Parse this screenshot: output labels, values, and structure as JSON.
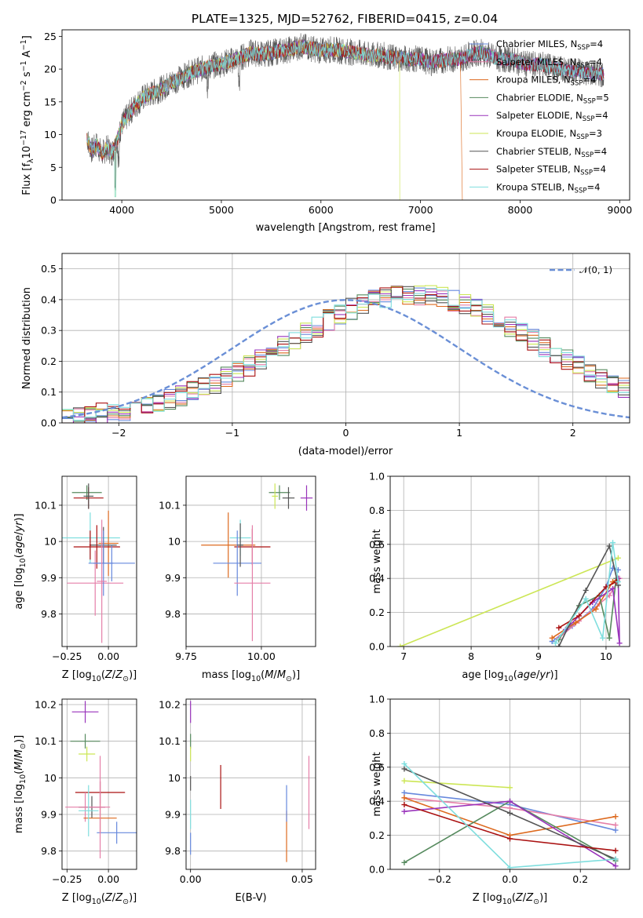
{
  "title": "PLATE=1325, MJD=52762, FIBERID=0415, z=0.04",
  "chart_data": [
    {
      "type": "line",
      "panel": "spectrum",
      "xlabel": "wavelength [Angstrom, rest frame]",
      "ylabel": "Flux [f",
      "ylabel_parts": [
        "Flux [f",
        "λ",
        "10",
        "−17",
        " erg cm",
        "−2",
        " s",
        "−1",
        " A",
        "−1",
        "]"
      ],
      "xlim": [
        3400,
        9100
      ],
      "ylim": [
        0,
        26
      ],
      "xticks": [
        4000,
        5000,
        6000,
        7000,
        8000,
        9000
      ],
      "yticks": [
        0,
        5,
        10,
        15,
        20,
        25
      ],
      "grid": false,
      "legend": "top-right",
      "x": [
        3650,
        3700,
        3750,
        3800,
        3850,
        3900,
        3950,
        4000,
        4100,
        4200,
        4300,
        4400,
        4500,
        4600,
        4700,
        4800,
        4900,
        5000,
        5100,
        5200,
        5300,
        5400,
        5500,
        5600,
        5700,
        5800,
        5900,
        6000,
        6100,
        6200,
        6300,
        6400,
        6500,
        6600,
        6700,
        6800,
        6900,
        7000,
        7100,
        7200,
        7300,
        7400,
        7500,
        7600,
        7700,
        7800,
        7900,
        8000,
        8100,
        8200,
        8300,
        8400,
        8500,
        8600,
        8700,
        8800
      ],
      "flux": [
        9.5,
        7.5,
        8.5,
        7.0,
        8.0,
        7.2,
        9.0,
        11.5,
        13.8,
        15.5,
        16.3,
        17.0,
        18.0,
        18.7,
        19.5,
        20.0,
        20.5,
        20.8,
        21.3,
        21.8,
        22.5,
        22.3,
        22.5,
        22.8,
        23.0,
        23.5,
        23.2,
        22.8,
        23.0,
        22.8,
        22.6,
        22.4,
        22.0,
        22.2,
        21.8,
        21.7,
        21.5,
        21.6,
        21.0,
        21.3,
        21.5,
        21.6,
        22.2,
        22.6,
        22.0,
        21.5,
        21.5,
        21.0,
        20.6,
        20.8,
        20.3,
        20.0,
        19.6,
        19.8,
        19.4,
        19.3
      ],
      "series": [
        {
          "name": "Chabrier MILES, N",
          "sub": "SSP",
          "suffix": "=4",
          "color": "#6688dd"
        },
        {
          "name": "Salpeter MILES, N",
          "sub": "SSP",
          "suffix": "=4",
          "color": "#e57fa8"
        },
        {
          "name": "Kroupa MILES, N",
          "sub": "SSP",
          "suffix": "=4",
          "color": "#dd6a1f"
        },
        {
          "name": "Chabrier ELODIE, N",
          "sub": "SSP",
          "suffix": "=5",
          "color": "#568a5e"
        },
        {
          "name": "Salpeter ELODIE, N",
          "sub": "SSP",
          "suffix": "=4",
          "color": "#9933bb"
        },
        {
          "name": "Kroupa ELODIE, N",
          "sub": "SSP",
          "suffix": "=3",
          "color": "#cce655"
        },
        {
          "name": "Chabrier STELIB, N",
          "sub": "SSP",
          "suffix": "=4",
          "color": "#555555"
        },
        {
          "name": "Salpeter STELIB, N",
          "sub": "SSP",
          "suffix": "=4",
          "color": "#aa1111"
        },
        {
          "name": "Kroupa STELIB, N",
          "sub": "SSP",
          "suffix": "=4",
          "color": "#7fdede"
        }
      ]
    },
    {
      "type": "line",
      "panel": "residual histogram",
      "xlabel": "(data-model)/error",
      "ylabel": "Normed distribution",
      "xlim": [
        -2.5,
        2.5
      ],
      "ylim": [
        0,
        0.55
      ],
      "xticks": [
        -2,
        -1,
        0,
        1,
        2
      ],
      "yticks": [
        0.0,
        0.1,
        0.2,
        0.3,
        0.4,
        0.5
      ],
      "grid": true,
      "legend": "top-right",
      "bin_width": 0.1,
      "bin_start": -2.5,
      "histogram_base": [
        0.018,
        0.022,
        0.026,
        0.03,
        0.035,
        0.041,
        0.048,
        0.056,
        0.065,
        0.075,
        0.087,
        0.1,
        0.114,
        0.13,
        0.147,
        0.165,
        0.184,
        0.205,
        0.226,
        0.248,
        0.27,
        0.292,
        0.313,
        0.334,
        0.353,
        0.37,
        0.385,
        0.397,
        0.406,
        0.412,
        0.415,
        0.415,
        0.412,
        0.406,
        0.397,
        0.385,
        0.37,
        0.353,
        0.334,
        0.313,
        0.292,
        0.27,
        0.248,
        0.226,
        0.205,
        0.184,
        0.165,
        0.147,
        0.13,
        0.114
      ],
      "reference": {
        "label": "𝒩(0, 1)",
        "color": "#6a8fd6"
      },
      "series_colors": [
        "#6688dd",
        "#e57fa8",
        "#dd6a1f",
        "#568a5e",
        "#9933bb",
        "#cce655",
        "#555555",
        "#aa1111",
        "#7fdede"
      ]
    },
    {
      "type": "scatter",
      "panel": "age vs metallicity",
      "xlabel": "Z [log10(Z/Z⊙)]",
      "ylabel": "age [log10(age/yr)]",
      "xlim": [
        -0.28,
        0.17
      ],
      "ylim": [
        9.71,
        10.18
      ],
      "xticks": [
        -0.25,
        0.0
      ],
      "xticklabels": [
        "−0.25",
        "0.00"
      ],
      "yticks": [
        9.8,
        9.9,
        10.0,
        10.1
      ],
      "grid": true,
      "points": [
        {
          "x": -0.13,
          "y": 10.135,
          "xerr": 0.09,
          "yerr": 0.02,
          "color": "#568a5e"
        },
        {
          "x": -0.12,
          "y": 10.12,
          "xerr": 0.09,
          "yerr": 0.03,
          "color": "#aa1111"
        },
        {
          "x": -0.12,
          "y": 10.125,
          "xerr": 0.03,
          "yerr": 0.035,
          "color": "#555555"
        },
        {
          "x": -0.11,
          "y": 10.01,
          "xerr": 0.18,
          "yerr": 0.07,
          "color": "#7fdede"
        },
        {
          "x": 0.0,
          "y": 9.995,
          "xerr": 0.06,
          "yerr": 0.09,
          "color": "#dd6a1f"
        },
        {
          "x": -0.03,
          "y": 9.99,
          "xerr": 0.08,
          "yerr": 0.05,
          "color": "#555555"
        },
        {
          "x": -0.07,
          "y": 9.985,
          "xerr": 0.14,
          "yerr": 0.06,
          "color": "#aa1111"
        },
        {
          "x": 0.02,
          "y": 9.94,
          "xerr": 0.14,
          "yerr": 0.05,
          "color": "#6688dd"
        },
        {
          "x": -0.08,
          "y": 9.885,
          "xerr": 0.17,
          "yerr": 0.09,
          "color": "#e57fa8"
        },
        {
          "x": -0.03,
          "y": 9.94,
          "xerr": 0.06,
          "yerr": 0.09,
          "color": "#6688dd"
        },
        {
          "x": -0.04,
          "y": 9.89,
          "xerr": 0.03,
          "yerr": 0.17,
          "color": "#e57fa8"
        },
        {
          "x": -0.11,
          "y": 9.99,
          "xerr": 0.005,
          "yerr": 0.04,
          "color": "#aa1111"
        }
      ]
    },
    {
      "type": "scatter",
      "panel": "age vs mass",
      "xlabel": "mass [log10(M/M⊙)]",
      "xlim": [
        9.75,
        10.18
      ],
      "ylim": [
        9.71,
        10.18
      ],
      "xticks": [
        9.75,
        10.0
      ],
      "xticklabels": [
        "9.75",
        "10.00"
      ],
      "yticks": [
        9.8,
        9.9,
        10.0,
        10.1
      ],
      "grid": true,
      "points": [
        {
          "x": 10.06,
          "y": 10.135,
          "xerr": 0.035,
          "yerr": 0.02,
          "color": "#568a5e"
        },
        {
          "x": 10.045,
          "y": 10.125,
          "xerr": 0.01,
          "yerr": 0.035,
          "color": "#cce655"
        },
        {
          "x": 10.09,
          "y": 10.12,
          "xerr": 0.02,
          "yerr": 0.03,
          "color": "#555555"
        },
        {
          "x": 10.15,
          "y": 10.12,
          "xerr": 0.02,
          "yerr": 0.035,
          "color": "#9933bb"
        },
        {
          "x": 9.93,
          "y": 10.01,
          "xerr": 0.035,
          "yerr": 0.05,
          "color": "#7fdede"
        },
        {
          "x": 9.89,
          "y": 9.99,
          "xerr": 0.09,
          "yerr": 0.09,
          "color": "#dd6a1f"
        },
        {
          "x": 9.97,
          "y": 9.985,
          "xerr": 0.06,
          "yerr": 0.05,
          "color": "#aa1111"
        },
        {
          "x": 9.92,
          "y": 9.94,
          "xerr": 0.08,
          "yerr": 0.09,
          "color": "#6688dd"
        },
        {
          "x": 9.97,
          "y": 9.885,
          "xerr": 0.06,
          "yerr": 0.16,
          "color": "#e57fa8"
        },
        {
          "x": 9.93,
          "y": 9.99,
          "xerr": 0.01,
          "yerr": 0.06,
          "color": "#555555"
        }
      ]
    },
    {
      "type": "line",
      "panel": "mass weight vs age",
      "xlabel": "age [log10(age/yr)]",
      "ylabel": "mass weight",
      "xlim": [
        6.8,
        10.35
      ],
      "ylim": [
        0,
        1.0
      ],
      "xticks": [
        7,
        8,
        9,
        10
      ],
      "yticks": [
        0.0,
        0.2,
        0.4,
        0.6,
        0.8,
        1.0
      ],
      "grid": true,
      "series": [
        {
          "color": "#6688dd",
          "x": [
            9.2,
            9.5,
            9.8,
            10.0,
            10.1,
            10.18
          ],
          "y": [
            0.03,
            0.12,
            0.22,
            0.35,
            0.46,
            0.45
          ]
        },
        {
          "color": "#e57fa8",
          "x": [
            9.3,
            9.6,
            9.9,
            10.05,
            10.2
          ],
          "y": [
            0.05,
            0.15,
            0.25,
            0.3,
            0.4
          ]
        },
        {
          "color": "#dd6a1f",
          "x": [
            9.2,
            9.55,
            9.85,
            10.1,
            10.18
          ],
          "y": [
            0.05,
            0.14,
            0.22,
            0.38,
            0.4
          ]
        },
        {
          "color": "#568a5e",
          "x": [
            9.3,
            9.6,
            9.9,
            10.05,
            10.15
          ],
          "y": [
            0.04,
            0.24,
            0.3,
            0.05,
            0.4
          ]
        },
        {
          "color": "#9933bb",
          "x": [
            9.4,
            9.8,
            10.1,
            10.2,
            10.18
          ],
          "y": [
            0.1,
            0.26,
            0.34,
            0.02,
            0.4
          ]
        },
        {
          "color": "#cce655",
          "x": [
            6.95,
            10.18
          ],
          "y": [
            0.0,
            0.52
          ]
        },
        {
          "color": "#555555",
          "x": [
            9.3,
            9.7,
            10.05,
            10.18
          ],
          "y": [
            0.0,
            0.33,
            0.59,
            0.36
          ]
        },
        {
          "color": "#aa1111",
          "x": [
            9.3,
            9.6,
            10.0,
            10.15
          ],
          "y": [
            0.11,
            0.18,
            0.35,
            0.38
          ]
        },
        {
          "color": "#7fdede",
          "x": [
            9.25,
            9.7,
            9.95,
            10.1,
            10.18
          ],
          "y": [
            0.02,
            0.28,
            0.05,
            0.61,
            0.38
          ]
        }
      ]
    },
    {
      "type": "scatter",
      "panel": "mass vs metallicity",
      "xlabel": "Z [log10(Z/Z⊙)]",
      "ylabel": "mass [log10(M/M⊙)]",
      "xlim": [
        -0.28,
        0.17
      ],
      "ylim": [
        9.75,
        10.215
      ],
      "xticks": [
        -0.25,
        0.0
      ],
      "xticklabels": [
        "−0.25",
        "0.00"
      ],
      "yticks": [
        9.8,
        9.9,
        10.0,
        10.1,
        10.2
      ],
      "grid": true,
      "points": [
        {
          "x": -0.14,
          "y": 10.18,
          "xerr": 0.08,
          "yerr": 0.03,
          "color": "#9933bb"
        },
        {
          "x": -0.14,
          "y": 10.1,
          "xerr": 0.09,
          "yerr": 0.02,
          "color": "#568a5e"
        },
        {
          "x": -0.13,
          "y": 10.065,
          "xerr": 0.05,
          "yerr": 0.02,
          "color": "#cce655"
        },
        {
          "x": -0.05,
          "y": 9.96,
          "xerr": 0.15,
          "yerr": 0.03,
          "color": "#aa1111"
        },
        {
          "x": -0.1,
          "y": 9.92,
          "xerr": 0.08,
          "yerr": 0.03,
          "color": "#555555"
        },
        {
          "x": -0.14,
          "y": 9.92,
          "xerr": 0.12,
          "yerr": 0.04,
          "color": "#e57fa8"
        },
        {
          "x": -0.05,
          "y": 9.89,
          "xerr": 0.1,
          "yerr": 0.04,
          "color": "#dd6a1f"
        },
        {
          "x": 0.05,
          "y": 9.85,
          "xerr": 0.12,
          "yerr": 0.03,
          "color": "#6688dd"
        },
        {
          "x": -0.05,
          "y": 9.92,
          "xerr": 0.06,
          "yerr": 0.14,
          "color": "#e57fa8"
        },
        {
          "x": -0.12,
          "y": 9.91,
          "xerr": 0.06,
          "yerr": 0.07,
          "color": "#7fdede"
        }
      ]
    },
    {
      "type": "scatter",
      "panel": "mass vs extinction",
      "xlabel": "E(B-V)",
      "xlim": [
        -0.002,
        0.056
      ],
      "ylim": [
        9.75,
        10.215
      ],
      "xticks": [
        0.0,
        0.05
      ],
      "xticklabels": [
        "0.00",
        "0.05"
      ],
      "yticks": [
        9.8,
        9.9,
        10.0,
        10.1,
        10.2
      ],
      "grid": true,
      "points": [
        {
          "x": 0.0,
          "y": 10.18,
          "xerr": 0.0,
          "yerr": 0.03,
          "color": "#9933bb"
        },
        {
          "x": 0.0,
          "y": 10.1,
          "xerr": 0.0,
          "yerr": 0.02,
          "color": "#568a5e"
        },
        {
          "x": 0.0,
          "y": 10.065,
          "xerr": 0.0,
          "yerr": 0.02,
          "color": "#cce655"
        },
        {
          "x": 0.0,
          "y": 9.985,
          "xerr": 0.0,
          "yerr": 0.02,
          "color": "#555555"
        },
        {
          "x": 0.0,
          "y": 9.9,
          "xerr": 0.0,
          "yerr": 0.04,
          "color": "#7fdede"
        },
        {
          "x": 0.0,
          "y": 9.82,
          "xerr": 0.0,
          "yerr": 0.03,
          "color": "#6688dd"
        },
        {
          "x": 0.0135,
          "y": 9.975,
          "xerr": 0.0,
          "yerr": 0.06,
          "color": "#aa1111"
        },
        {
          "x": 0.043,
          "y": 9.84,
          "xerr": 0.0,
          "yerr": 0.07,
          "color": "#dd6a1f"
        },
        {
          "x": 0.043,
          "y": 9.93,
          "xerr": 0.0,
          "yerr": 0.05,
          "color": "#6688dd"
        },
        {
          "x": 0.053,
          "y": 9.96,
          "xerr": 0.0,
          "yerr": 0.1,
          "color": "#e57fa8"
        }
      ]
    },
    {
      "type": "line",
      "panel": "mass weight vs metallicity",
      "xlabel": "Z [log10(Z/Z⊙)]",
      "ylabel": "mass weight",
      "xlim": [
        -0.34,
        0.34
      ],
      "ylim": [
        0,
        1.0
      ],
      "xticks": [
        -0.2,
        0.0,
        0.2
      ],
      "xticklabels": [
        "−0.2",
        "0.0",
        "0.2"
      ],
      "yticks": [
        0.0,
        0.2,
        0.4,
        0.6,
        0.8,
        1.0
      ],
      "grid": true,
      "series": [
        {
          "color": "#6688dd",
          "x": [
            -0.3,
            0.0,
            0.3
          ],
          "y": [
            0.45,
            0.38,
            0.23
          ]
        },
        {
          "color": "#e57fa8",
          "x": [
            -0.3,
            0.0,
            0.3
          ],
          "y": [
            0.42,
            0.36,
            0.26
          ]
        },
        {
          "color": "#dd6a1f",
          "x": [
            -0.3,
            0.0,
            0.3
          ],
          "y": [
            0.42,
            0.2,
            0.31
          ]
        },
        {
          "color": "#568a5e",
          "x": [
            -0.3,
            0.0,
            0.3
          ],
          "y": [
            0.04,
            0.4,
            0.05
          ]
        },
        {
          "color": "#9933bb",
          "x": [
            -0.3,
            0.0,
            0.3
          ],
          "y": [
            0.34,
            0.4,
            0.02
          ]
        },
        {
          "color": "#cce655",
          "x": [
            -0.3,
            0.0
          ],
          "y": [
            0.52,
            0.48
          ]
        },
        {
          "color": "#555555",
          "x": [
            -0.3,
            0.0,
            0.3
          ],
          "y": [
            0.59,
            0.33,
            0.06
          ]
        },
        {
          "color": "#aa1111",
          "x": [
            -0.3,
            0.0,
            0.3
          ],
          "y": [
            0.38,
            0.18,
            0.11
          ]
        },
        {
          "color": "#7fdede",
          "x": [
            -0.3,
            0.0,
            0.3
          ],
          "y": [
            0.62,
            0.01,
            0.06
          ]
        }
      ]
    }
  ]
}
